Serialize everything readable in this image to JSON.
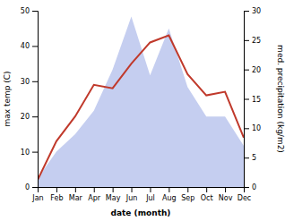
{
  "chart_data": {
    "type": "line",
    "categories": [
      "Jan",
      "Feb",
      "Mar",
      "Apr",
      "May",
      "Jun",
      "Jul",
      "Aug",
      "Sep",
      "Oct",
      "Nov",
      "Dec"
    ],
    "series": [
      {
        "type": "area",
        "axis": "y2",
        "color": "#c5cef0",
        "values": [
          1.5,
          6,
          9,
          13,
          20,
          29,
          19,
          27,
          17,
          12,
          12,
          7
        ]
      },
      {
        "type": "line",
        "color": "#c0392b",
        "values": [
          2,
          13,
          20,
          29,
          28,
          35,
          41,
          43,
          32,
          26,
          27,
          14
        ]
      }
    ],
    "xlabel": "date (month)",
    "ylabel": "max temp (C)",
    "y2label": "med. precipitation (kg/m2)",
    "ylim": [
      0,
      50
    ],
    "yticks": [
      0,
      10,
      20,
      30,
      40,
      50
    ],
    "y2lim": [
      0,
      30
    ],
    "y2ticks": [
      0,
      5,
      10,
      15,
      20,
      25,
      30
    ]
  }
}
